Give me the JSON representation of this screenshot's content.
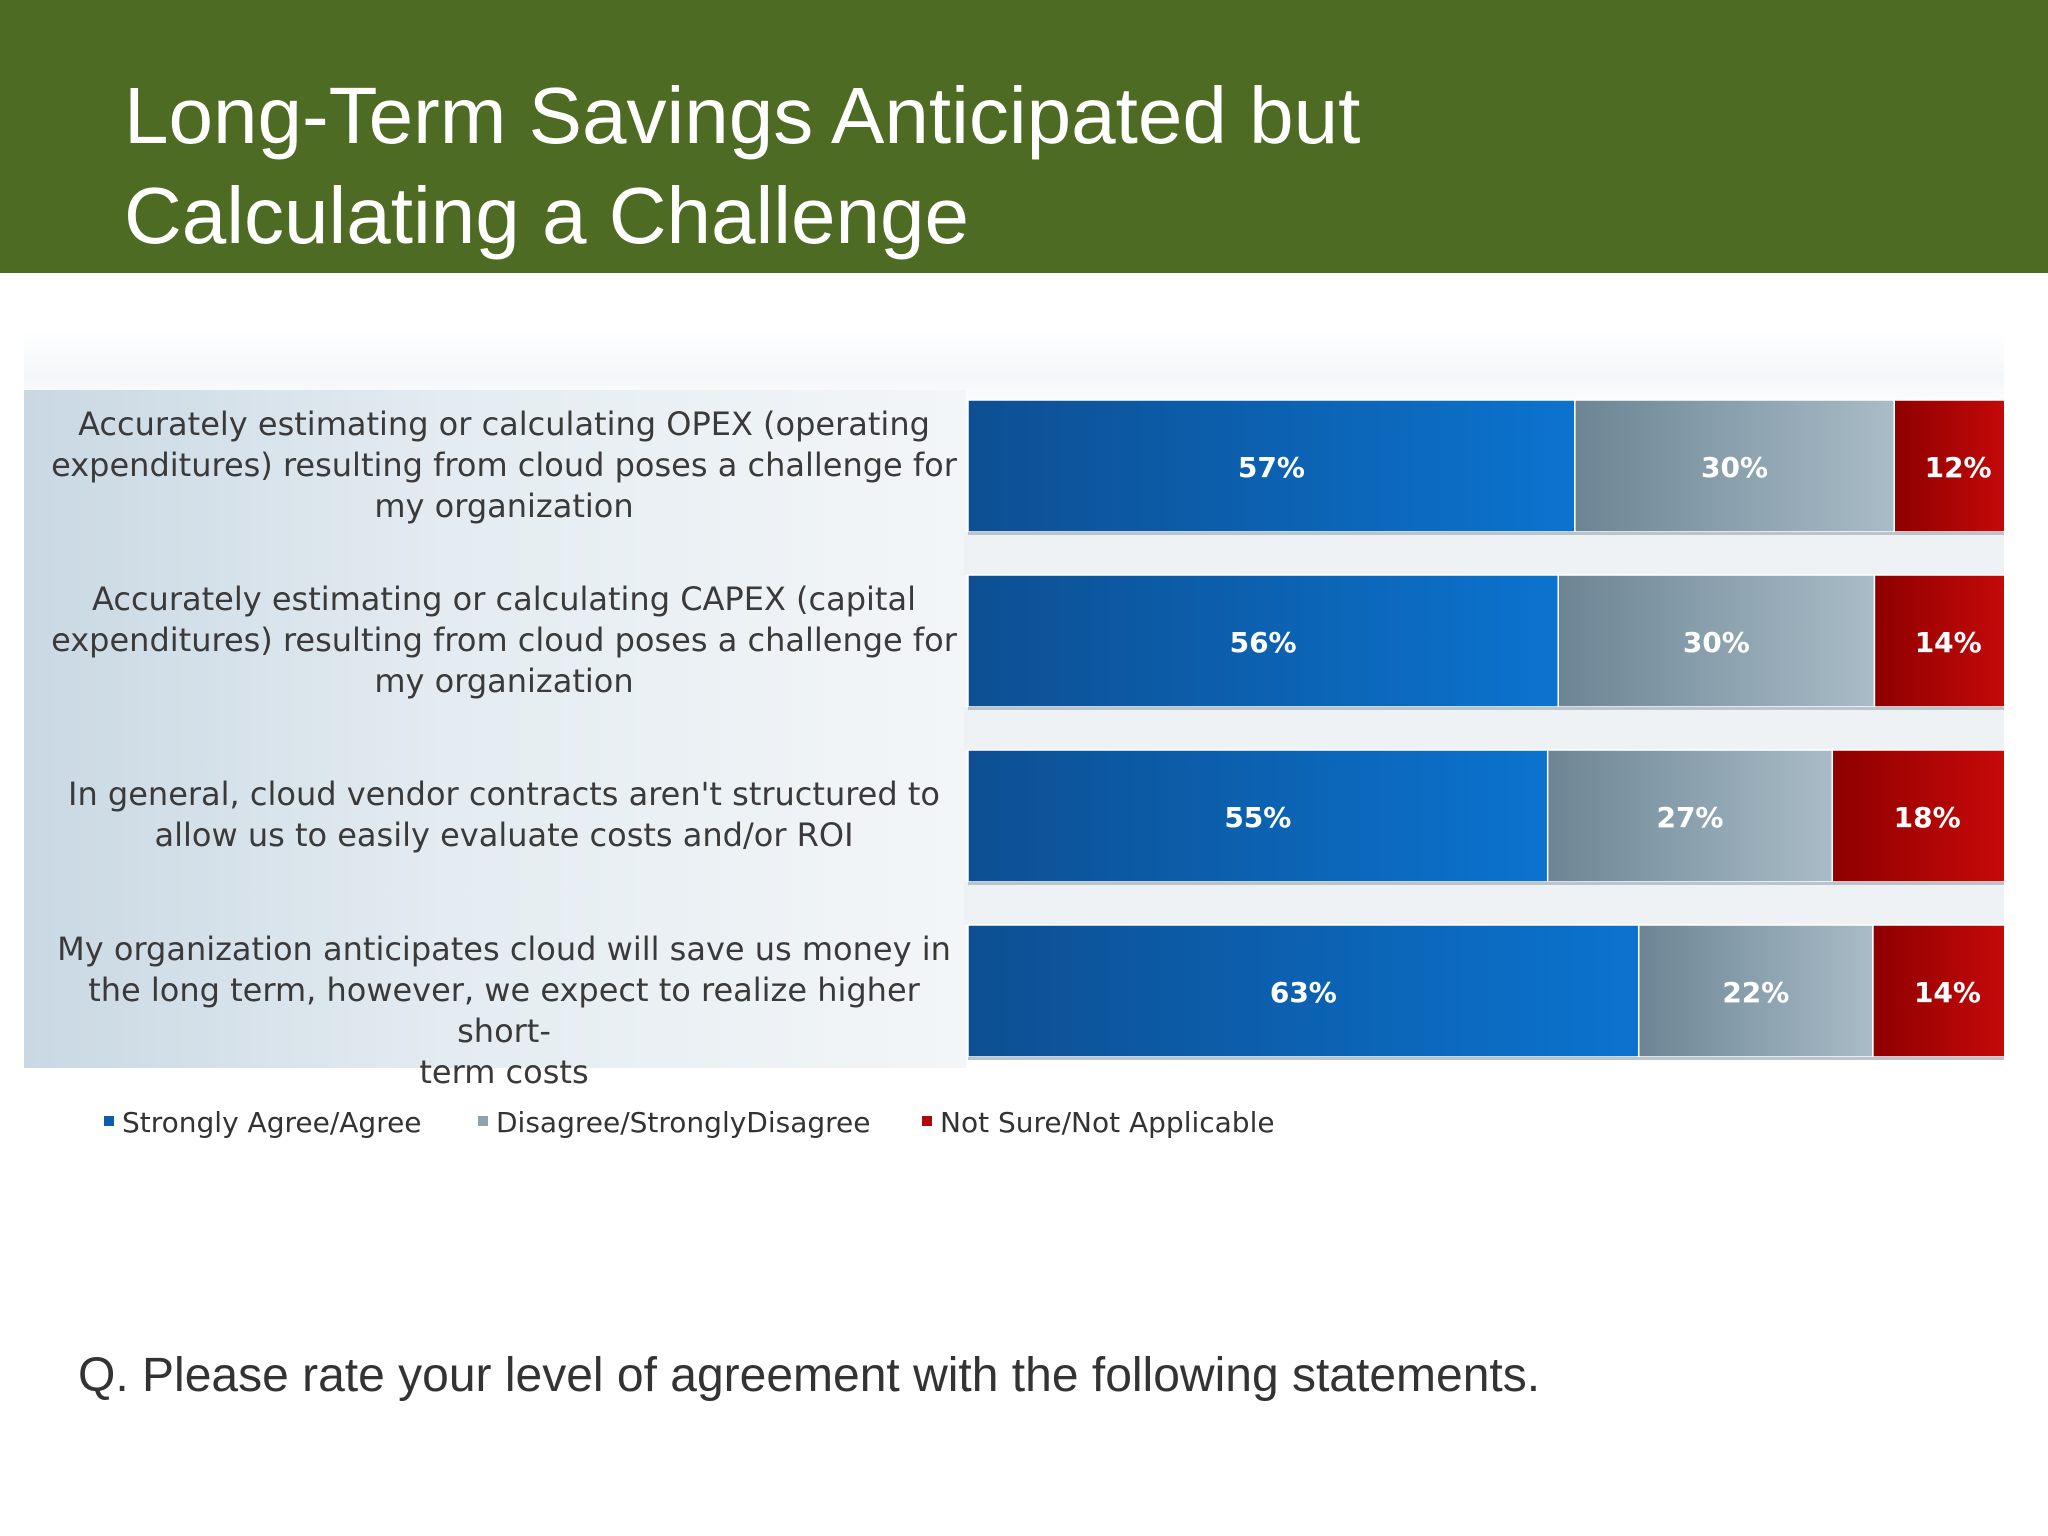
{
  "title": {
    "line1": "Long-Term Savings Anticipated but",
    "line2": "Calculating a Challenge"
  },
  "question": "Q.  Please rate your level of agreement with the following statements.",
  "legend": [
    {
      "label": "Strongly Agree/Agree",
      "color": "#0b5ea8"
    },
    {
      "label": "Disagree/StronglyDisagree",
      "color": "#7d96a6"
    },
    {
      "label": "Not Sure/Not Applicable",
      "color": "#b00a0a"
    }
  ],
  "chart_data": {
    "type": "bar",
    "orientation": "horizontal",
    "stacked": true,
    "categories": [
      "Accurately estimating or calculating OPEX (operating expenditures) resulting from cloud poses a challenge for my organization",
      "Accurately estimating or calculating CAPEX (capital expenditures) resulting from cloud poses a challenge for my organization",
      "In general, cloud vendor contracts aren't structured to allow us to easily evaluate costs and/or ROI",
      "My organization anticipates cloud will save us money in the long term, however, we expect to realize higher short-term costs"
    ],
    "category_lines": [
      [
        "Accurately estimating or calculating OPEX (operating",
        "expenditures) resulting from cloud poses a challenge for",
        "my organization"
      ],
      [
        "Accurately estimating or calculating CAPEX (capital",
        "expenditures) resulting from cloud poses a challenge for",
        "my organization"
      ],
      [
        "In general, cloud vendor contracts aren't structured to",
        "allow us to easily evaluate costs and/or ROI"
      ],
      [
        "My organization anticipates cloud will save us money in",
        "the long term, however, we expect to realize higher short-",
        "term costs"
      ]
    ],
    "series": [
      {
        "name": "Strongly Agree/Agree",
        "values": [
          57,
          56,
          55,
          63
        ],
        "labels": [
          "57%",
          "56%",
          "55%",
          "63%"
        ]
      },
      {
        "name": "Disagree/StronglyDisagree",
        "values": [
          30,
          30,
          27,
          22
        ],
        "labels": [
          "30%",
          "30%",
          "27%",
          "22%"
        ]
      },
      {
        "name": "Not Sure/Not Applicable",
        "values": [
          12,
          14,
          18,
          14
        ],
        "labels": [
          "12%",
          "14%",
          "18%",
          "14%"
        ]
      }
    ],
    "xlim": [
      0,
      100
    ],
    "legend_position": "bottom-left",
    "grid": false
  }
}
